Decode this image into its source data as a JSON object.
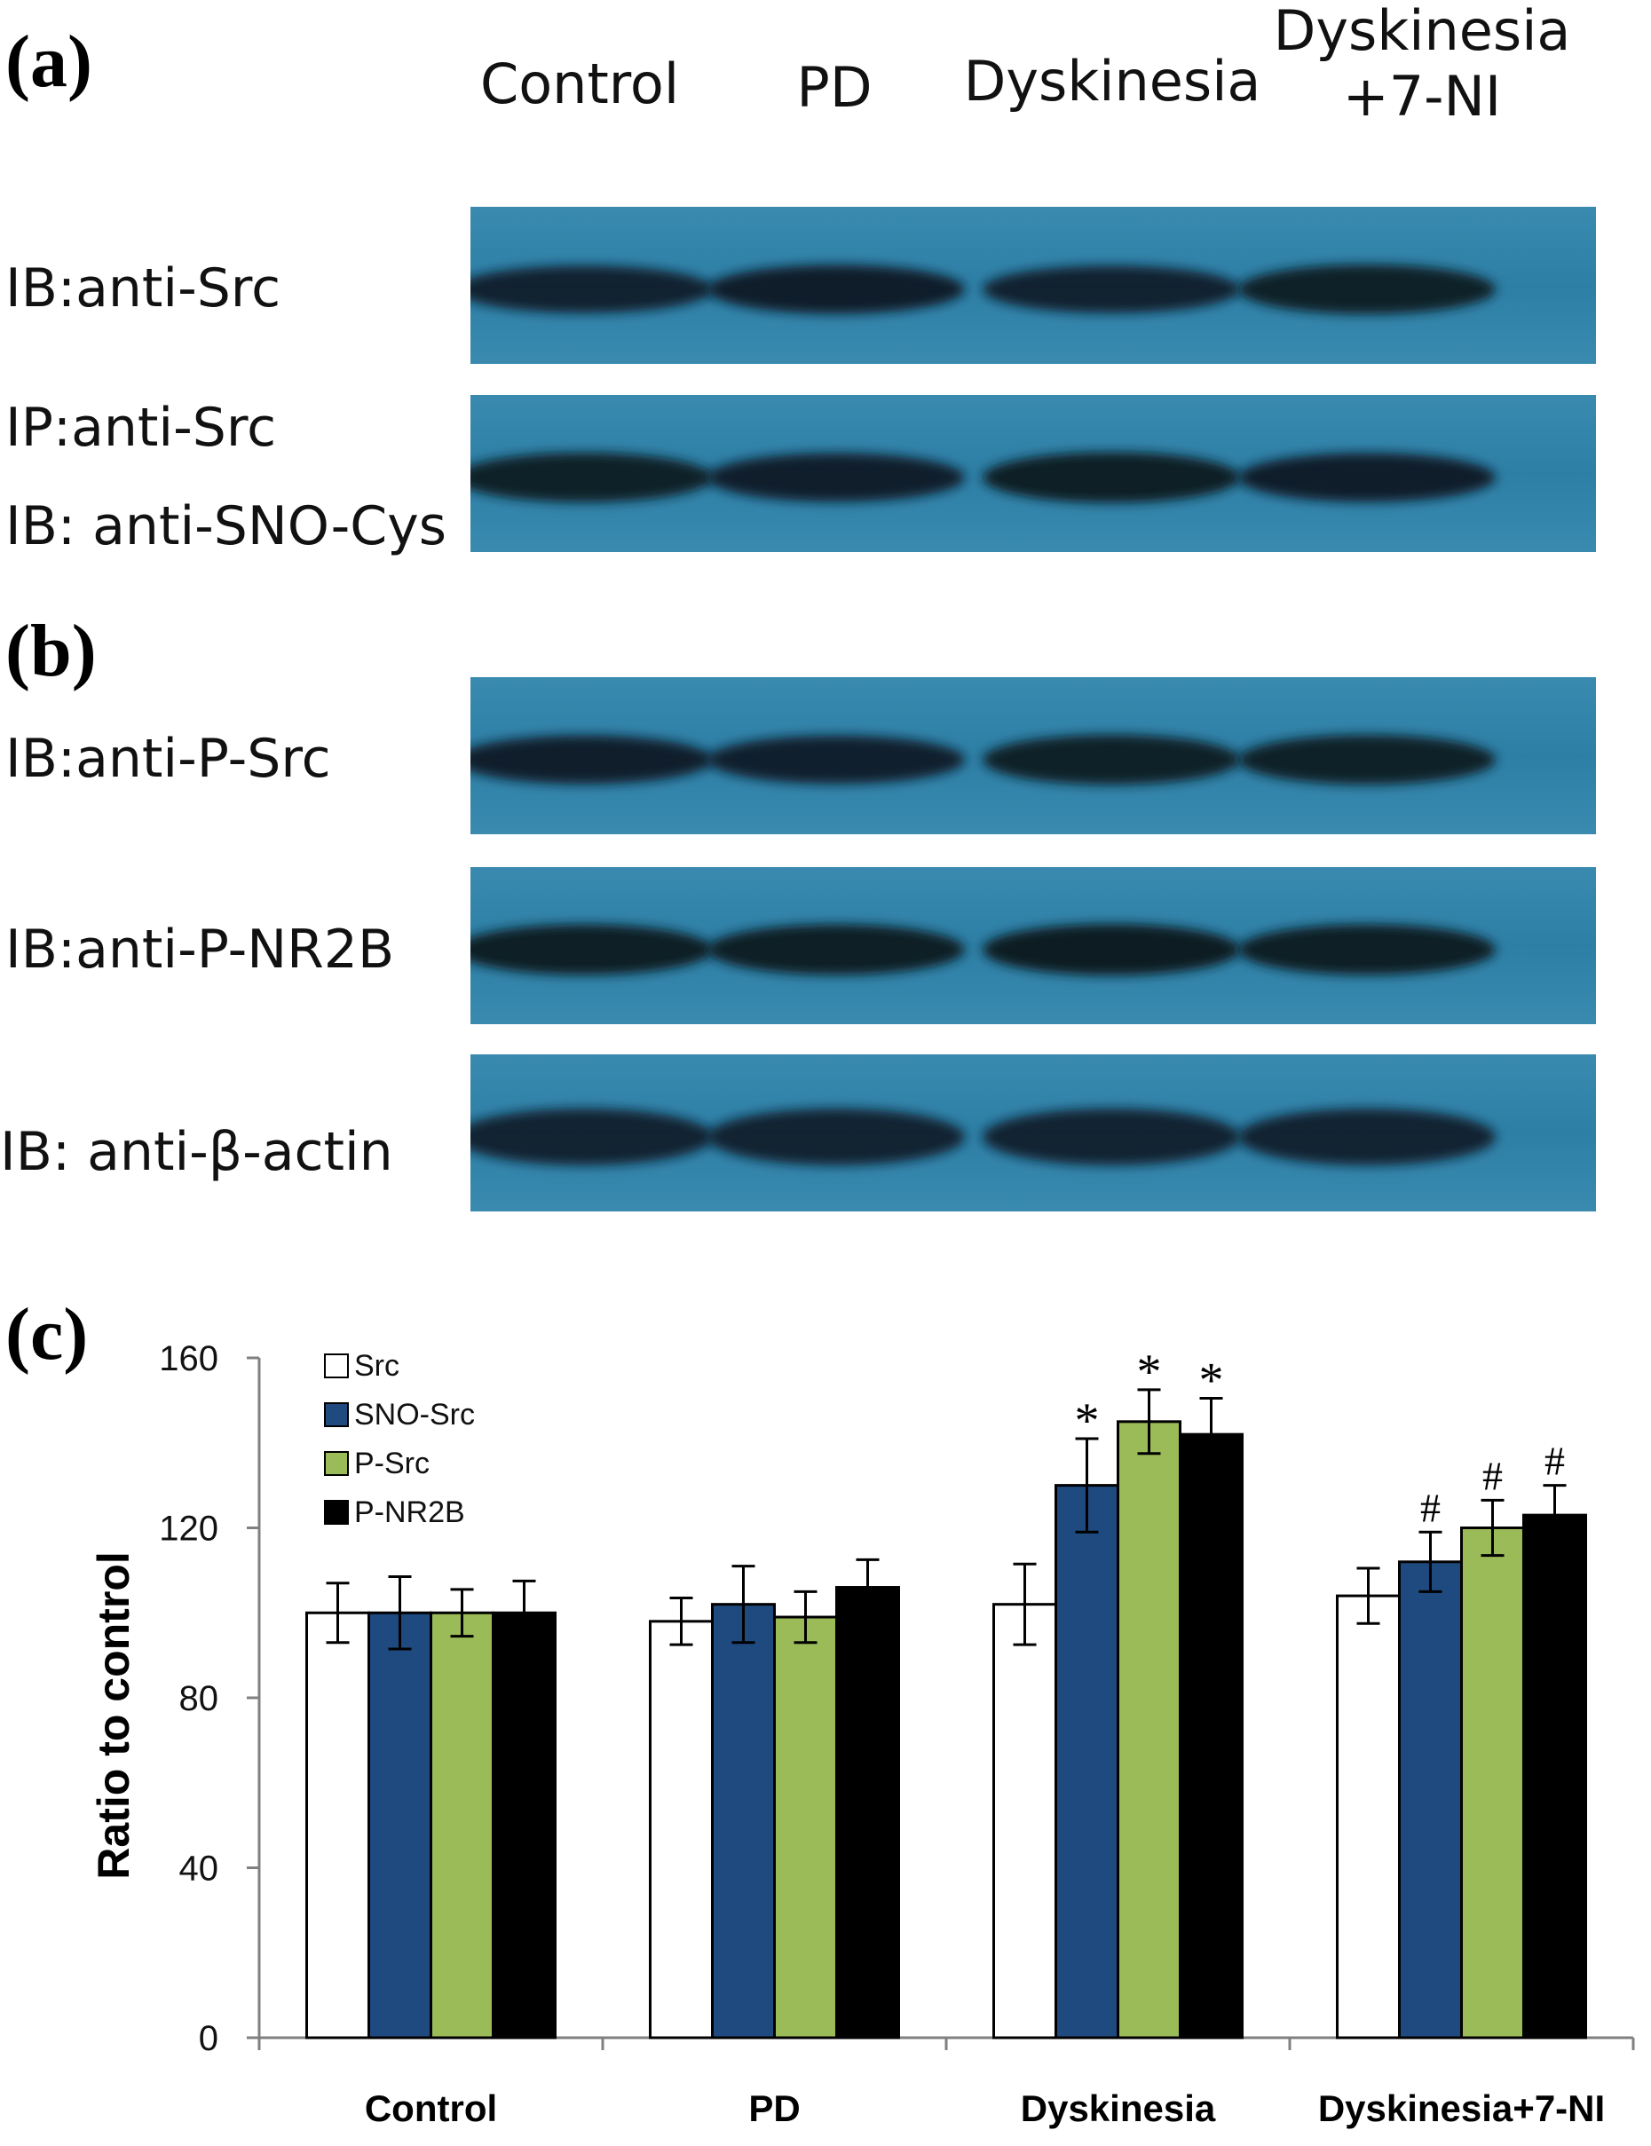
{
  "panels": {
    "a": "(a)",
    "b": "(b)",
    "c": "(c)"
  },
  "lanes": {
    "control": "Control",
    "pd": "PD",
    "dyskinesia": "Dyskinesia",
    "dysk_7ni_line1": "Dyskinesia",
    "dysk_7ni_line2": "+7-NI"
  },
  "blots": [
    {
      "id": "src",
      "labels": [
        "IB:anti-Src"
      ],
      "bands": [
        0.78,
        0.86,
        0.78,
        0.9
      ]
    },
    {
      "id": "sno-src",
      "labels": [
        "IP:anti-Src",
        "IB: anti-SNO-Cys"
      ],
      "bands": [
        0.9,
        0.85,
        0.95,
        0.86
      ]
    },
    {
      "id": "p-src",
      "labels": [
        "IB:anti-P-Src"
      ],
      "bands": [
        0.85,
        0.83,
        0.92,
        0.9
      ]
    },
    {
      "id": "p-nr2b",
      "labels": [
        "IB:anti-P-NR2B"
      ],
      "bands": [
        0.95,
        0.95,
        1.0,
        0.95
      ]
    },
    {
      "id": "beta-actin",
      "labels": [
        "IB: anti-β-actin"
      ],
      "bands": [
        0.75,
        0.75,
        0.75,
        0.75
      ]
    }
  ],
  "colors": {
    "blot_bg": "#2d7fa6",
    "band": "#0a1a24",
    "src": "#ffffff",
    "sno_src": "#1f4a7f",
    "p_src": "#9bbb59",
    "p_nr2b": "#000000"
  },
  "chart_data": {
    "type": "bar",
    "categories": [
      "Control",
      "PD",
      "Dyskinesia",
      "Dyskinesia+7-NI"
    ],
    "series": [
      {
        "name": "Src",
        "color": "#ffffff",
        "values": [
          100,
          98,
          102,
          104
        ],
        "errors": [
          7,
          5.5,
          9.5,
          6.5
        ],
        "markers": [
          "",
          "",
          "",
          ""
        ]
      },
      {
        "name": "SNO-Src",
        "color": "#1f4a7f",
        "values": [
          100,
          102,
          130,
          112
        ],
        "errors": [
          8.5,
          9,
          11,
          7
        ],
        "markers": [
          "",
          "",
          "*",
          "#"
        ]
      },
      {
        "name": "P-Src",
        "color": "#9bbb59",
        "values": [
          100,
          99,
          145,
          120
        ],
        "errors": [
          5.5,
          6,
          7.5,
          6.5
        ],
        "markers": [
          "",
          "",
          "*",
          "#"
        ]
      },
      {
        "name": "P-NR2B",
        "color": "#000000",
        "values": [
          100,
          106,
          142,
          123
        ],
        "errors": [
          7.5,
          6.5,
          8.5,
          7
        ],
        "markers": [
          "",
          "",
          "*",
          "#"
        ]
      }
    ],
    "ylabel": "Ratio to control",
    "xlabel": "",
    "ylim": [
      0,
      160
    ],
    "yticks": [
      0,
      40,
      80,
      120,
      160
    ],
    "legend_position": "top-left",
    "grid": false
  }
}
